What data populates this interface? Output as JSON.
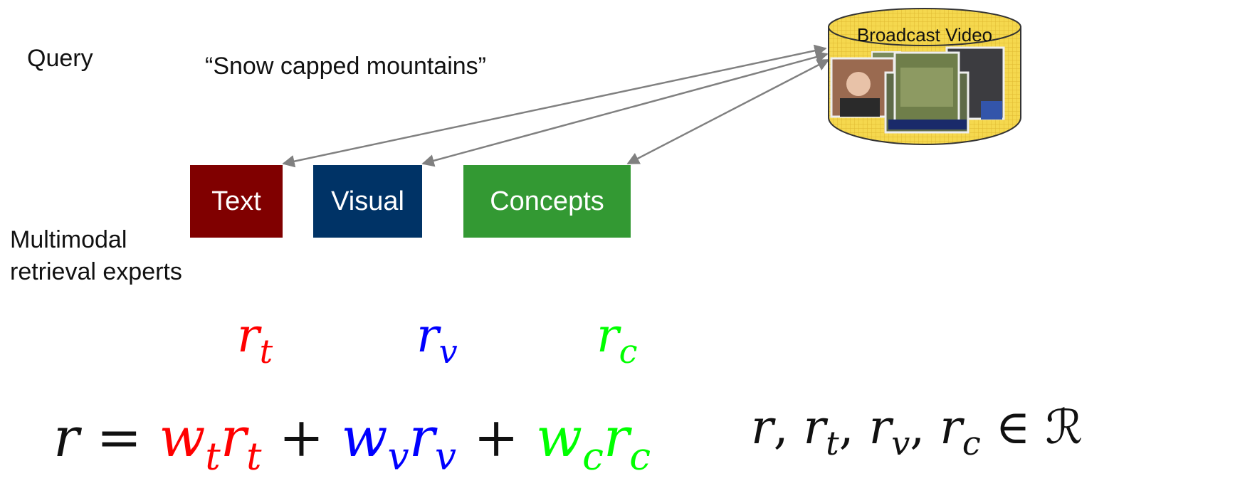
{
  "labels": {
    "query": "Query",
    "query_text": "“Snow capped mountains”",
    "experts_line1": "Multimodal",
    "experts_line2": "retrieval experts"
  },
  "boxes": {
    "text": "Text",
    "visual": "Visual",
    "concepts": "Concepts"
  },
  "database": {
    "label": "Broadcast Video"
  },
  "colors": {
    "text_box": "#800000",
    "visual_box": "#003366",
    "concepts_box": "#339933",
    "database_fill": "#f5d84e",
    "arrow": "#808080",
    "text_math": "#ff0000",
    "visual_math": "#0000ff",
    "concepts_math": "#00ff00"
  },
  "math": {
    "r": "r",
    "equals": " = ",
    "plus": " + ",
    "w": "w",
    "t": "t",
    "v": "v",
    "c": "c",
    "comma": ", ",
    "element_of": " ∈ ",
    "reals": "ℛ"
  }
}
